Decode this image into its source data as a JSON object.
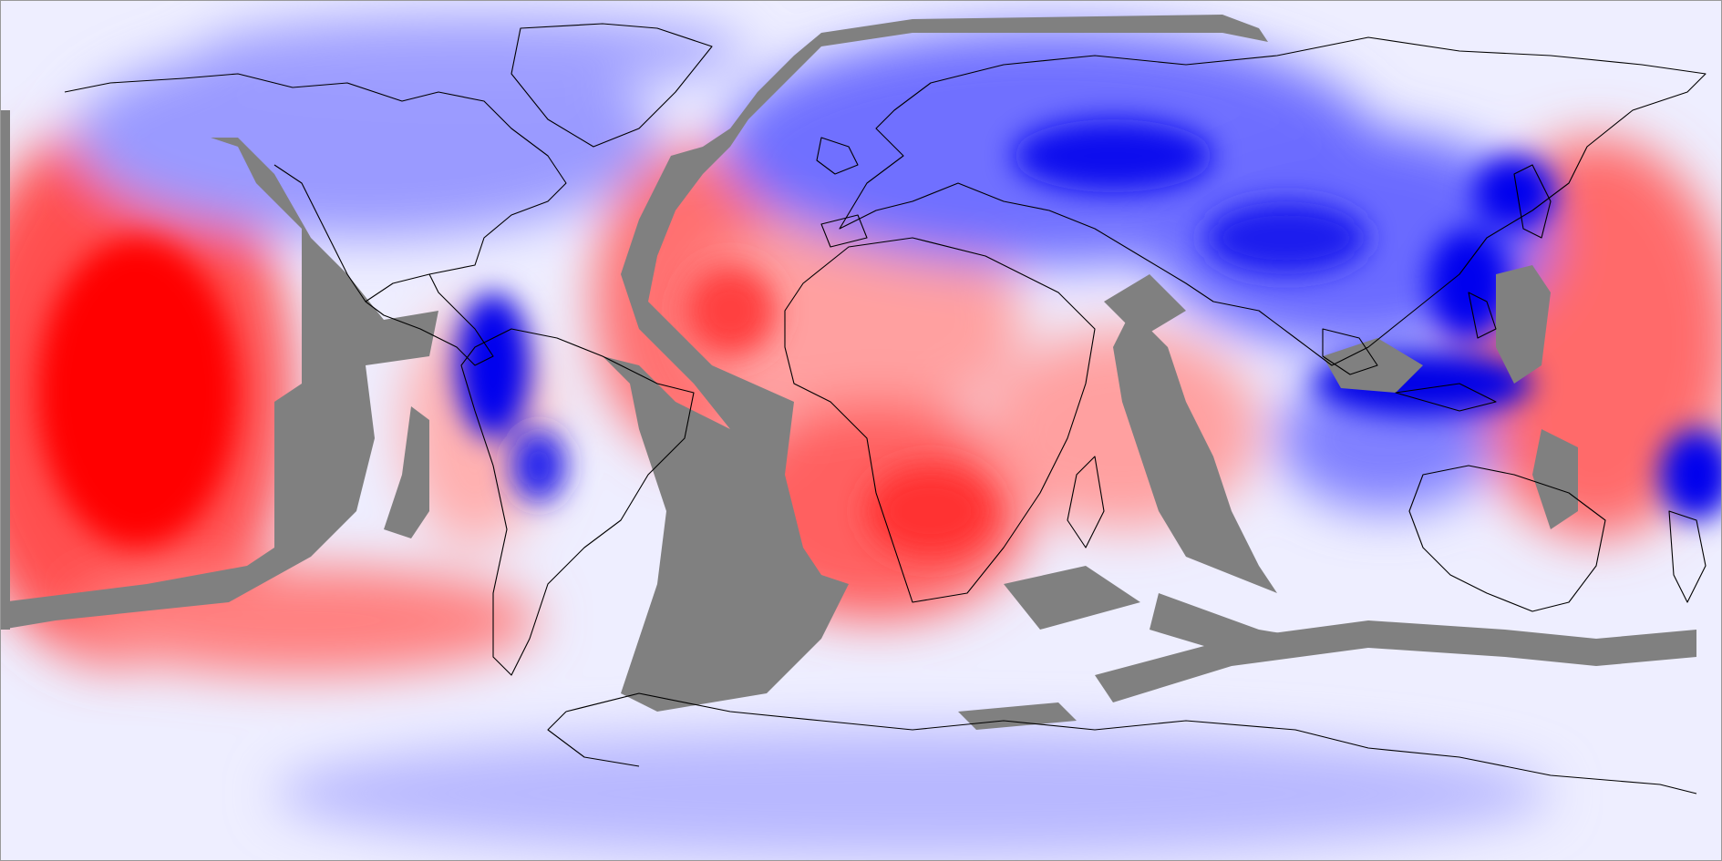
{
  "map": {
    "projection": "equirectangular",
    "colors": {
      "strong_positive": "#ff0000",
      "positive": "#ff6060",
      "weak_positive": "#ffc8c8",
      "neutral": "#f2f2ff",
      "weak_negative": "#c0c0ff",
      "negative": "#6060ff",
      "strong_negative": "#0000e6",
      "mask": "#808080",
      "coastline": "#000000"
    }
  }
}
